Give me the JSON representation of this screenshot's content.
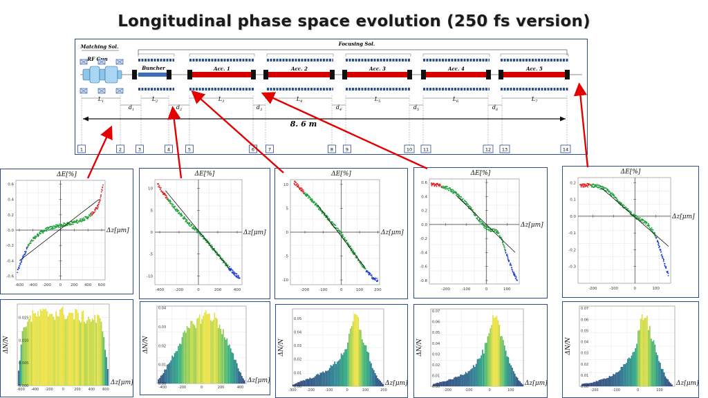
{
  "title": "Longitudinal phase space evolution (250 fs version)",
  "beamline": {
    "matching_sol": "Matching Sol.",
    "rf_gun": "RF Gun",
    "focusing_sol": "Focusing Sol.",
    "buncher": "Buncher",
    "acc_labels": [
      "Acc. 1",
      "Acc. 2",
      "Acc. 3",
      "Acc. 4",
      "Acc. 5"
    ],
    "length_total": "8. 6 m",
    "lengths": [
      {
        "n": "L",
        "sub": "1"
      },
      {
        "n": "d",
        "sub": "1"
      },
      {
        "n": "L",
        "sub": "2"
      },
      {
        "n": "d",
        "sub": "2"
      },
      {
        "n": "L",
        "sub": "3"
      },
      {
        "n": "d",
        "sub": "3"
      },
      {
        "n": "L",
        "sub": "4"
      },
      {
        "n": "d",
        "sub": "4"
      },
      {
        "n": "L",
        "sub": "5"
      },
      {
        "n": "d",
        "sub": "5"
      },
      {
        "n": "L",
        "sub": "6"
      },
      {
        "n": "d",
        "sub": "6"
      },
      {
        "n": "L",
        "sub": "7"
      }
    ],
    "positions": [
      "1",
      "2",
      "3",
      "4",
      "5",
      "6",
      "7",
      "8",
      "9",
      "10",
      "11",
      "12",
      "13",
      "14"
    ]
  },
  "axis_labels": {
    "dE": "ΔE[%]",
    "dz": "Δz[μm]",
    "dN": "ΔN/N"
  },
  "chart_data": [
    {
      "type": "scatter",
      "panel": 1,
      "xlim": [
        -650,
        650
      ],
      "ylim": [
        -0.65,
        0.65
      ],
      "xticks": [
        "-600",
        "-400",
        "-200",
        "0",
        "200",
        "400",
        "600"
      ],
      "yticks": [
        "0.6",
        "0.4",
        "0.2",
        "0.0",
        "-0.2",
        "-0.4",
        "-0.6"
      ],
      "curve_x": [
        -630,
        -560,
        -480,
        -400,
        -300,
        -200,
        -100,
        0,
        100,
        200,
        300,
        400,
        480,
        540,
        580,
        620
      ],
      "curve_y": [
        -0.55,
        -0.38,
        -0.22,
        -0.12,
        -0.04,
        0.01,
        0.04,
        0.06,
        0.08,
        0.1,
        0.13,
        0.17,
        0.23,
        0.3,
        0.4,
        0.6
      ],
      "fit_x": [
        -600,
        560
      ],
      "fit_y": [
        -0.4,
        0.4
      ]
    },
    {
      "type": "scatter",
      "panel": 2,
      "xlim": [
        -450,
        450
      ],
      "ylim": [
        -12,
        12
      ],
      "xticks": [
        "-400",
        "-200",
        "0",
        "200",
        "400"
      ],
      "yticks": [
        "10",
        "5",
        "0",
        "-5",
        "-10"
      ],
      "curve_x": [
        -420,
        -380,
        -330,
        -280,
        -220,
        -160,
        -100,
        -40,
        0,
        40,
        100,
        160,
        220,
        280,
        330,
        380,
        430
      ],
      "curve_y": [
        11,
        9.5,
        8,
        6.5,
        5,
        3.5,
        2,
        0.8,
        0,
        -0.9,
        -2.4,
        -4,
        -5.6,
        -7.2,
        -8.5,
        -9.6,
        -10.5
      ],
      "fit_x": [
        -340,
        330
      ],
      "fit_y": [
        9.5,
        -8.6
      ]
    },
    {
      "type": "scatter",
      "panel": 3,
      "xlim": [
        -280,
        210
      ],
      "ylim": [
        -11,
        11
      ],
      "xticks": [
        "-200",
        "-100",
        "0",
        "100",
        "200"
      ],
      "yticks": [
        "10",
        "5",
        "0",
        "-5",
        "-10"
      ],
      "curve_x": [
        -260,
        -230,
        -200,
        -170,
        -140,
        -110,
        -80,
        -50,
        -20,
        0,
        20,
        50,
        80,
        110,
        140,
        170,
        200
      ],
      "curve_y": [
        10.5,
        9.3,
        8.2,
        7,
        5.8,
        4.5,
        3.2,
        1.8,
        0.5,
        -0.4,
        -1.5,
        -3.3,
        -5,
        -6.7,
        -8.2,
        -9.4,
        -10.2
      ],
      "fit_x": [
        -130,
        130
      ],
      "fit_y": [
        5.7,
        -7.5
      ]
    },
    {
      "type": "scatter",
      "panel": 4,
      "xlim": [
        -280,
        160
      ],
      "ylim": [
        -0.85,
        0.65
      ],
      "xticks": [
        "-200",
        "-100",
        "0",
        "100"
      ],
      "yticks": [
        "0.6",
        "0.4",
        "0.2",
        "0.0",
        "-0.2",
        "-0.4",
        "-0.6",
        "-0.8"
      ],
      "curve_x": [
        -270,
        -230,
        -190,
        -150,
        -110,
        -70,
        -40,
        -10,
        20,
        50,
        70,
        90,
        110,
        130,
        150
      ],
      "curve_y": [
        0.57,
        0.56,
        0.52,
        0.44,
        0.33,
        0.2,
        0.08,
        -0.03,
        -0.08,
        -0.1,
        -0.18,
        -0.35,
        -0.52,
        -0.68,
        -0.8
      ],
      "fit_x": [
        -150,
        140
      ],
      "fit_y": [
        0.42,
        -0.4
      ]
    },
    {
      "type": "scatter",
      "panel": 5,
      "xlim": [
        -270,
        170
      ],
      "ylim": [
        -0.4,
        0.23
      ],
      "xticks": [
        "-200",
        "-100",
        "0",
        "100"
      ],
      "yticks": [
        "0.2",
        "0.1",
        "0.0",
        "-0.1",
        "-0.2",
        "-0.3"
      ],
      "curve_x": [
        -260,
        -220,
        -180,
        -140,
        -100,
        -70,
        -40,
        -10,
        10,
        40,
        70,
        100,
        120,
        140,
        160
      ],
      "curve_y": [
        0.18,
        0.185,
        0.18,
        0.16,
        0.12,
        0.08,
        0.04,
        0.01,
        -0.01,
        -0.03,
        -0.06,
        -0.12,
        -0.2,
        -0.28,
        -0.35
      ],
      "fit_x": [
        -160,
        160
      ],
      "fit_y": [
        0.17,
        -0.18
      ]
    },
    {
      "type": "bar",
      "panel": 1,
      "xlim": [
        -650,
        650
      ],
      "ylim": [
        0,
        0.018
      ],
      "xticks": [
        "-600",
        "-400",
        "-200",
        "0",
        "200",
        "400",
        "600"
      ],
      "yticks": [
        "0.015",
        "0.010",
        "0.005",
        "0.000"
      ],
      "x": [
        -640,
        -600,
        -560,
        -500,
        -400,
        -300,
        -200,
        -100,
        0,
        100,
        200,
        300,
        400,
        500,
        560,
        600,
        640
      ],
      "y": [
        0.002,
        0.008,
        0.013,
        0.0145,
        0.0155,
        0.0158,
        0.016,
        0.016,
        0.016,
        0.0158,
        0.0155,
        0.015,
        0.0148,
        0.0145,
        0.013,
        0.008,
        0.002
      ]
    },
    {
      "type": "bar",
      "panel": 2,
      "xlim": [
        -460,
        460
      ],
      "ylim": [
        0,
        0.041
      ],
      "xticks": [
        "-400",
        "-200",
        "0",
        "200",
        "400"
      ],
      "yticks": [
        "0.04",
        "0.03",
        "0.02",
        "0.01",
        "0.00"
      ],
      "x": [
        -450,
        -400,
        -300,
        -200,
        -100,
        0,
        50,
        100,
        150,
        200,
        300,
        400,
        450
      ],
      "y": [
        0.002,
        0.005,
        0.014,
        0.024,
        0.031,
        0.035,
        0.037,
        0.036,
        0.034,
        0.03,
        0.018,
        0.006,
        0.001
      ]
    },
    {
      "type": "bar",
      "panel": 3,
      "xlim": [
        -300,
        200
      ],
      "ylim": [
        0,
        0.057
      ],
      "xticks": [
        "-300",
        "-200",
        "-100",
        "0",
        "100",
        "200"
      ],
      "yticks": [
        "0.05",
        "0.04",
        "0.03",
        "0.02",
        "0.01",
        "0.00"
      ],
      "x": [
        -300,
        -250,
        -200,
        -150,
        -100,
        -50,
        0,
        20,
        40,
        60,
        80,
        100,
        120,
        150,
        180,
        200
      ],
      "y": [
        0.001,
        0.004,
        0.006,
        0.009,
        0.013,
        0.019,
        0.03,
        0.04,
        0.052,
        0.048,
        0.038,
        0.03,
        0.022,
        0.01,
        0.004,
        0.001
      ]
    },
    {
      "type": "bar",
      "panel": 4,
      "xlim": [
        -280,
        160
      ],
      "ylim": [
        0,
        0.072
      ],
      "xticks": [
        "-200",
        "-100",
        "0",
        "100"
      ],
      "yticks": [
        "0.07",
        "0.06",
        "0.05",
        "0.04",
        "0.03",
        "0.02",
        "0.01",
        "0.00"
      ],
      "x": [
        -270,
        -230,
        -190,
        -150,
        -110,
        -70,
        -30,
        0,
        20,
        40,
        60,
        80,
        100,
        130,
        160
      ],
      "y": [
        0.002,
        0.004,
        0.006,
        0.009,
        0.013,
        0.02,
        0.032,
        0.048,
        0.064,
        0.058,
        0.045,
        0.033,
        0.02,
        0.008,
        0.001
      ]
    },
    {
      "type": "bar",
      "panel": 5,
      "xlim": [
        -270,
        170
      ],
      "ylim": [
        0,
        0.072
      ],
      "xticks": [
        "-200",
        "-100",
        "0",
        "100"
      ],
      "yticks": [
        "0.07",
        "0.06",
        "0.05",
        "0.04",
        "0.03",
        "0.02",
        "0.01",
        "0.00"
      ],
      "x": [
        -260,
        -220,
        -180,
        -140,
        -100,
        -60,
        -20,
        0,
        20,
        40,
        60,
        80,
        100,
        130,
        160
      ],
      "y": [
        0.002,
        0.003,
        0.005,
        0.008,
        0.012,
        0.019,
        0.03,
        0.045,
        0.066,
        0.06,
        0.047,
        0.034,
        0.021,
        0.008,
        0.001
      ]
    }
  ],
  "colors": {
    "acc": "#d40000",
    "buncher": "#3a6fb5",
    "arrow": "#e30000",
    "head": "#d22",
    "core": "#20a03a",
    "tail": "#1f3fd8",
    "panel_border": "#2c4a8a"
  }
}
